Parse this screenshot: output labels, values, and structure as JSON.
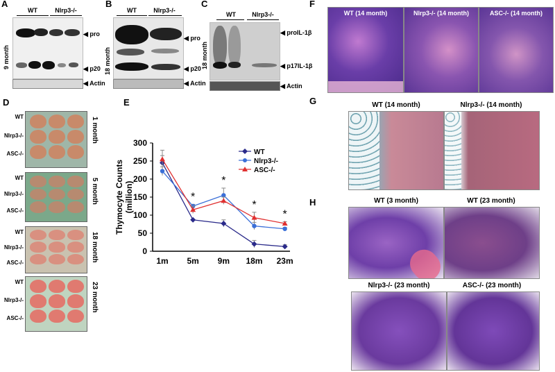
{
  "panels": {
    "A": {
      "letter": "A",
      "groups": [
        "WT",
        "Nlrp3-/-"
      ],
      "side_label": "9 month",
      "bands": [
        "pro",
        "p20",
        "Actin"
      ]
    },
    "B": {
      "letter": "B",
      "groups": [
        "WT",
        "Nlrp3-/-"
      ],
      "side_label": "18 month",
      "bands": [
        "pro",
        "p20",
        "Actin"
      ]
    },
    "C": {
      "letter": "C",
      "groups": [
        "WT",
        "Nlrp3-/-"
      ],
      "side_label": "18 month",
      "bands": [
        "proIL-1β",
        "p17IL-1β",
        "Actin"
      ]
    },
    "D": {
      "letter": "D",
      "rows": [
        {
          "age": "1 month",
          "genotypes": [
            "WT",
            "Nlrp3-/-",
            "ASC-/-"
          ]
        },
        {
          "age": "5 month",
          "genotypes": [
            "WT",
            "Nlrp3-/-",
            "ASC-/-"
          ]
        },
        {
          "age": "18 month",
          "genotypes": [
            "WT",
            "Nlrp3-/-",
            "ASC-/-"
          ]
        },
        {
          "age": "23 month",
          "genotypes": [
            "WT",
            "Nlrp3-/-",
            "ASC-/-"
          ]
        }
      ]
    },
    "E": {
      "letter": "E"
    },
    "F": {
      "letter": "F",
      "titles": [
        "WT (14 month)",
        "Nlrp3-/- (14 month)",
        "ASC-/- (14 month)"
      ]
    },
    "G": {
      "letter": "G",
      "titles": [
        "WT (14 month)",
        "Nlrp3-/- (14 month)"
      ]
    },
    "H": {
      "letter": "H",
      "titles": [
        "WT (3 month)",
        "WT (23 month)",
        "Nlrp3-/- (23 month)",
        "ASC-/- (23 month)"
      ]
    }
  },
  "chart_data": {
    "type": "line",
    "categories": [
      "1m",
      "5m",
      "9m",
      "18m",
      "23m"
    ],
    "ylabel": "Thymocyte Counts (million)",
    "xlabel": "",
    "ylim": [
      0,
      300
    ],
    "yticks": [
      0,
      50,
      100,
      150,
      200,
      250,
      300
    ],
    "series": [
      {
        "name": "WT",
        "color": "#2a2a8a",
        "marker": "diamond",
        "values": [
          245,
          87,
          77,
          20,
          13
        ],
        "err": [
          20,
          0,
          10,
          10,
          5
        ]
      },
      {
        "name": "Nlrp3-/-",
        "color": "#3a6fd8",
        "marker": "circle",
        "values": [
          222,
          125,
          155,
          70,
          62
        ],
        "err": [
          12,
          5,
          20,
          10,
          4
        ]
      },
      {
        "name": "ASC-/-",
        "color": "#e03030",
        "marker": "triangle",
        "values": [
          255,
          115,
          140,
          93,
          77
        ],
        "err": [
          25,
          10,
          10,
          15,
          5
        ]
      }
    ],
    "annotations": [
      "*",
      "*",
      "*",
      "*"
    ],
    "legend_position": "top-right"
  }
}
